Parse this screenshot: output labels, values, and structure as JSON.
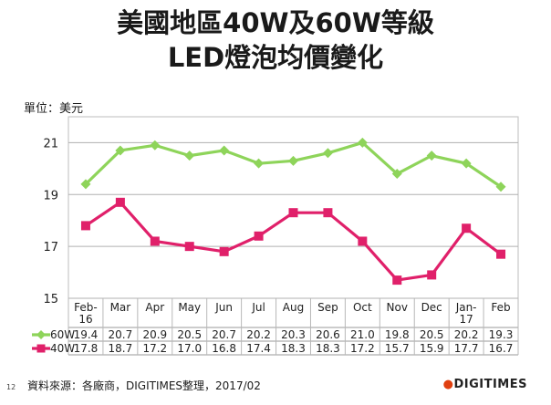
{
  "chart_data": {
    "type": "line",
    "title_line1": "美國地區40W及60W等級",
    "title_line2": "LED燈泡均價變化",
    "unit_label": "單位：美元",
    "categories": [
      [
        "Feb-",
        "16"
      ],
      [
        "Mar"
      ],
      [
        "Apr"
      ],
      [
        "May"
      ],
      [
        "Jun"
      ],
      [
        "Jul"
      ],
      [
        "Aug"
      ],
      [
        "Sep"
      ],
      [
        "Oct"
      ],
      [
        "Nov"
      ],
      [
        "Dec"
      ],
      [
        "Jan-",
        "17"
      ],
      [
        "Feb"
      ]
    ],
    "y_ticks": [
      "15",
      "17",
      "19",
      "21"
    ],
    "ylim": [
      15,
      22
    ],
    "grid": true,
    "legend": "table-below",
    "series": [
      {
        "name": "60W",
        "color": "#8ed45a",
        "values": [
          19.4,
          20.7,
          20.9,
          20.5,
          20.7,
          20.2,
          20.3,
          20.6,
          21.0,
          19.8,
          20.5,
          20.2,
          19.3
        ],
        "labels": [
          "19.4",
          "20.7",
          "20.9",
          "20.5",
          "20.7",
          "20.2",
          "20.3",
          "20.6",
          "21.0",
          "19.8",
          "20.5",
          "20.2",
          "19.3"
        ]
      },
      {
        "name": "40W",
        "color": "#e0206a",
        "values": [
          17.8,
          18.7,
          17.2,
          17.0,
          16.8,
          17.4,
          18.3,
          18.3,
          17.2,
          15.7,
          15.9,
          17.7,
          16.7
        ],
        "labels": [
          "17.8",
          "18.7",
          "17.2",
          "17.0",
          "16.8",
          "17.4",
          "18.3",
          "18.3",
          "17.2",
          "15.7",
          "15.9",
          "17.7",
          "16.7"
        ]
      }
    ]
  },
  "footer": {
    "source": "資料來源：各廠商，DIGITIMES整理，2017/02",
    "page_number": "12",
    "logo_text": "DIGITIMES"
  }
}
